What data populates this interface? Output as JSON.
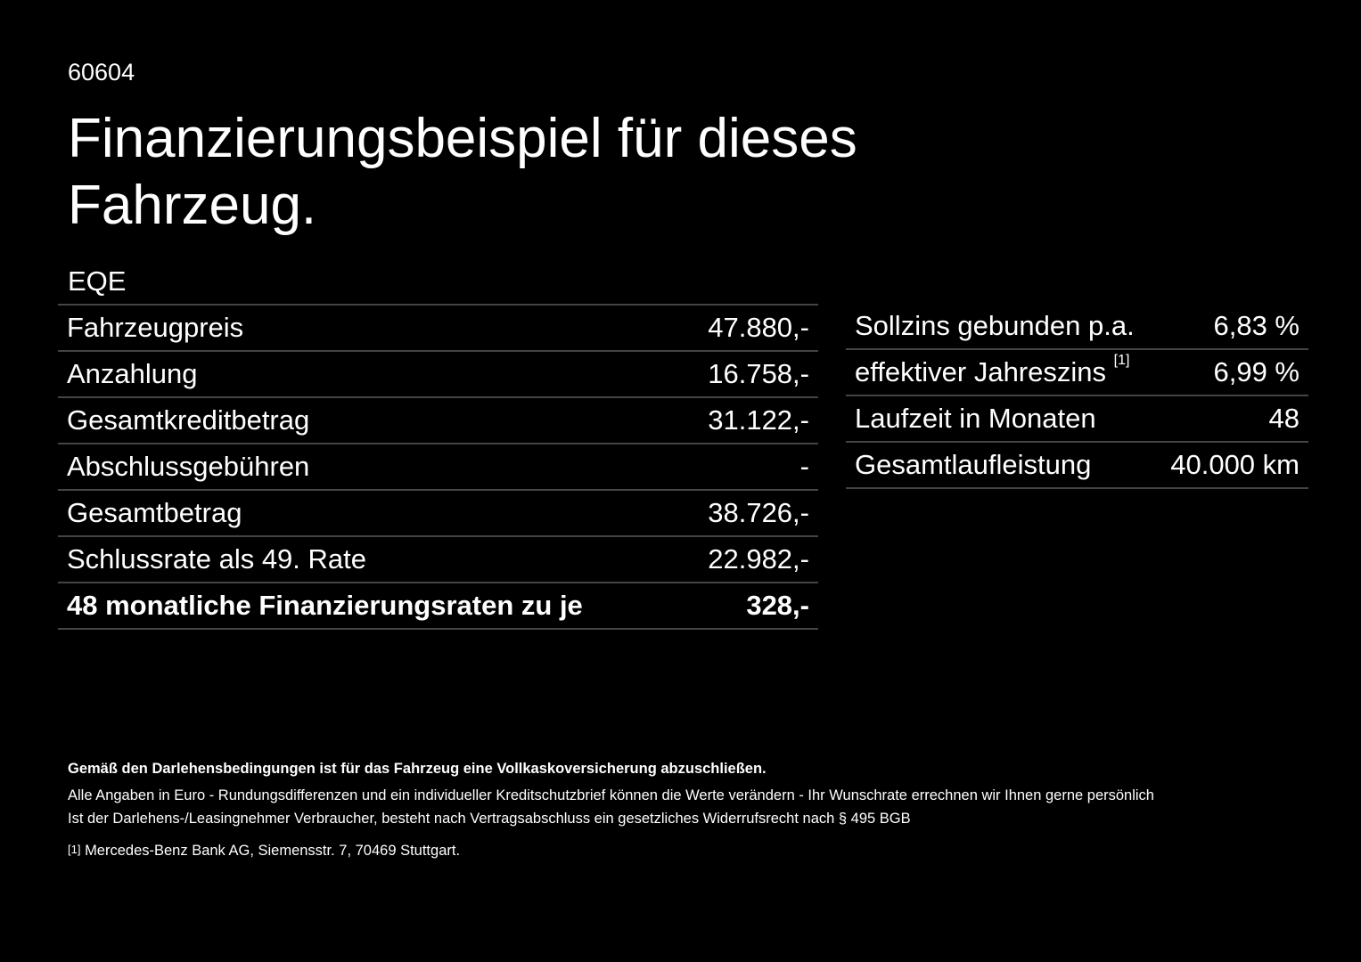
{
  "header": {
    "code": "60604",
    "title_line1": "Finanzierungsbeispiel für dieses",
    "title_line2": "Fahrzeug."
  },
  "model": "EQE",
  "left_table": {
    "rows": [
      [
        "Fahrzeugpreis",
        "47.880,-"
      ],
      [
        "Anzahlung",
        "16.758,-"
      ],
      [
        "Gesamtkreditbetrag",
        "31.122,-"
      ],
      [
        "Abschlussgebühren",
        "-"
      ],
      [
        "Gesamtbetrag",
        "38.726,-"
      ],
      [
        "Schlussrate als 49. Rate",
        "22.982,-"
      ],
      [
        "48 monatliche Finanzierungsraten zu je",
        "328,-"
      ]
    ]
  },
  "right_table": {
    "rows": [
      [
        "Sollzins gebunden p.a.",
        "6,83 %"
      ],
      [
        "effektiver Jahreszins",
        "6,99 %"
      ],
      [
        "Laufzeit in Monaten",
        "48"
      ],
      [
        "Gesamtlaufleistung",
        "40.000 km"
      ]
    ],
    "footnote_mark": "[1]"
  },
  "notes": {
    "bold": "Gemäß den Darlehensbedingungen ist für das Fahrzeug eine Vollkaskoversicherung abzuschließen.",
    "line1": "Alle Angaben in Euro - Rundungsdifferenzen und ein individueller Kreditschutzbrief können die Werte verändern - Ihr Wunschrate errechnen wir Ihnen gerne persönlich",
    "line2": "Ist der Darlehens-/Leasingnehmer Verbraucher, besteht nach Vertragsabschluss ein gesetzliches Widerrufsrecht nach § 495 BGB",
    "footnote_mark": "[1]",
    "footnote": "Mercedes-Benz Bank AG, Siemensstr. 7, 70469 Stuttgart."
  }
}
